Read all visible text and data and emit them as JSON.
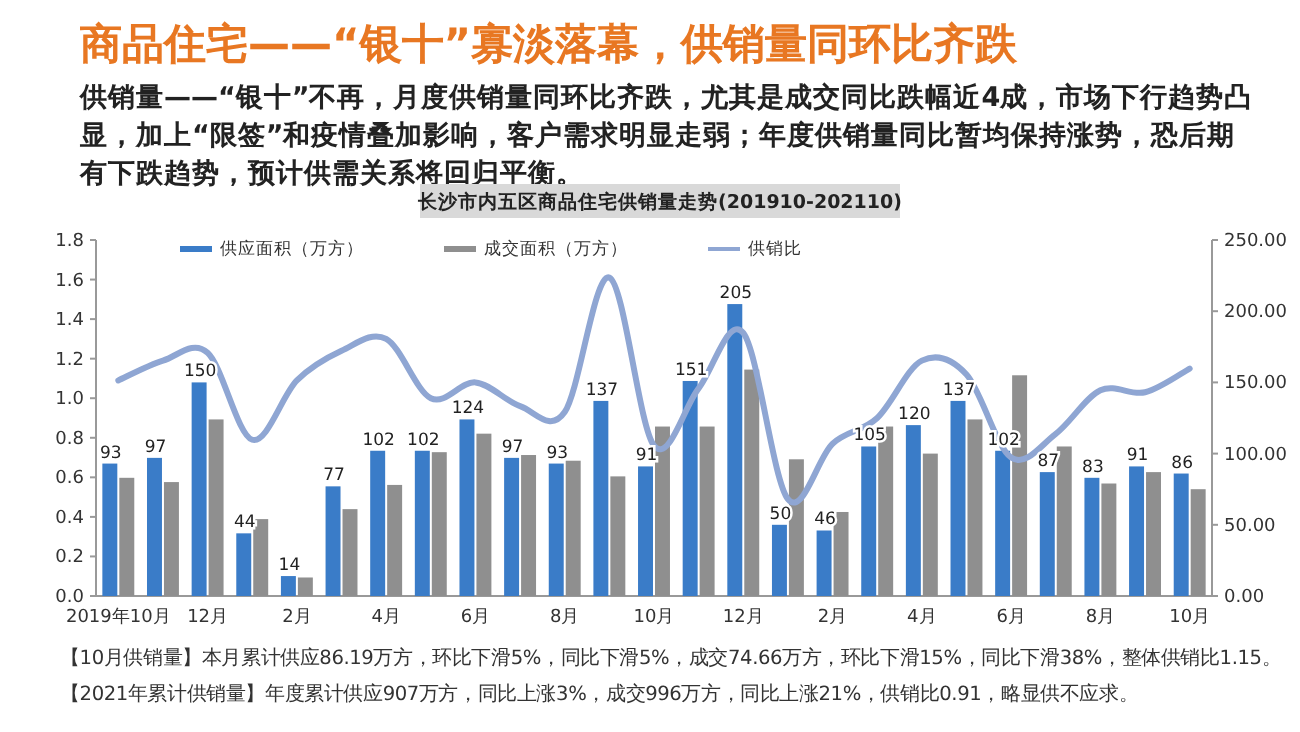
{
  "chart_data": {
    "type": "bar",
    "title": "商品住宅——“银十”寡淡落幕，供销量同环比齐跌",
    "subtitle": "供销量——“银十”不再，月度供销量同环比齐跌，尤其是成交同比跌幅近4成，市场下行趋势凸显，加上“限签”和疫情叠加影响，客户需求明显走弱；年度供销量同比暂均保持涨势，恐后期有下跌趋势，预计供需关系将回归平衡。",
    "legend_title": "长沙市内五区商品住宅供销量走势(201910-202110)",
    "annotations": [
      "【10月供销量】本月累计供应86.19万方，环比下滑5%，同比下滑5%，成交74.66万方，环比下滑15%，同比下滑38%，整体供销比1.15。",
      "【2021年累计供销量】年度累计供应907万方，同比上涨3%，成交996万方，同比上涨21%，供销比0.91，略显供不应求。"
    ],
    "categories": [
      "2019年10月",
      null,
      "12月",
      null,
      "2月",
      null,
      "4月",
      null,
      "6月",
      null,
      "8月",
      null,
      "10月",
      null,
      "12月",
      null,
      "2月",
      null,
      "4月",
      null,
      "6月",
      null,
      "8月",
      null,
      "10月"
    ],
    "series": [
      {
        "name": "供应面积（万方）",
        "axis": "y2",
        "color": "#3a7cc8",
        "values": [
          93,
          97,
          150,
          44,
          14,
          77,
          102,
          102,
          124,
          97,
          93,
          137,
          91,
          151,
          205,
          50,
          46,
          105,
          120,
          137,
          102,
          87,
          83,
          91,
          86
        ],
        "value_labels": [
          "93",
          "97",
          "150",
          "44",
          "14",
          "77",
          "102",
          "102",
          "124",
          "97",
          "93",
          "137",
          "91",
          "151",
          "205",
          "50",
          "46",
          "105",
          "120",
          "137",
          "102",
          "87",
          "83",
          "91",
          "86"
        ]
      },
      {
        "name": "成交面积（万方）",
        "axis": "y2",
        "color": "#8f8f8f",
        "values": [
          83,
          80,
          124,
          54,
          13,
          61,
          78,
          101,
          114,
          99,
          95,
          84,
          119,
          119,
          159,
          96,
          59,
          119,
          100,
          124,
          155,
          105,
          79,
          87,
          75
        ]
      },
      {
        "name": "供销比",
        "type": "line",
        "color": "#8fa6d3",
        "values": [
          1.09,
          1.19,
          1.23,
          0.79,
          1.09,
          1.24,
          1.3,
          1.0,
          1.08,
          0.96,
          0.93,
          1.61,
          0.76,
          1.05,
          1.33,
          0.49,
          0.77,
          0.9,
          1.19,
          1.12,
          0.7,
          0.82,
          1.04,
          1.03,
          1.15
        ]
      }
    ],
    "ylim": [
      0,
      1.8
    ],
    "yticks": [
      {
        "value": 0,
        "label": "0.0"
      },
      {
        "value": 0.2,
        "label": "0.2"
      },
      {
        "value": 0.4,
        "label": "0.4"
      },
      {
        "value": 0.6,
        "label": "0.6"
      },
      {
        "value": 0.8,
        "label": "0.8"
      },
      {
        "value": 1,
        "label": "1.0"
      },
      {
        "value": 1.2,
        "label": "1.2"
      },
      {
        "value": 1.4,
        "label": "1.4"
      },
      {
        "value": 1.6,
        "label": "1.6"
      },
      {
        "value": 1.8,
        "label": "1.8"
      }
    ],
    "y2lim": [
      0,
      250
    ],
    "y2ticks": [
      {
        "value": 0,
        "label": "0.00"
      },
      {
        "value": 50,
        "label": "50.00"
      },
      {
        "value": 100,
        "label": "100.00"
      },
      {
        "value": 150,
        "label": "150.00"
      },
      {
        "value": 200,
        "label": "200.00"
      },
      {
        "value": 250,
        "label": "250.00"
      }
    ],
    "legend": "top",
    "grid": false
  }
}
